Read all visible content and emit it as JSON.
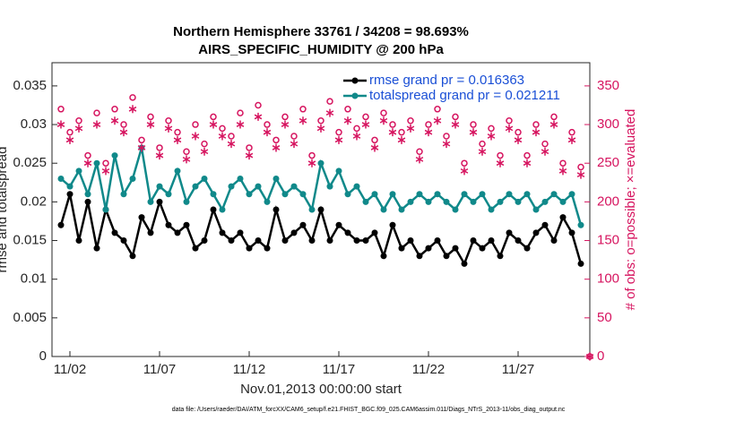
{
  "chart_data": {
    "type": "line",
    "title": "Northern Hemisphere 33761 / 34208 = 98.693%",
    "subtitle": "AIRS_SPECIFIC_HUMIDITY @ 200 hPa",
    "xlabel": "Nov.01,2013 00:00:00 start",
    "ylabel": "rmse and totalspread",
    "y2label": "# of obs: o=possible; ×=evaluated",
    "footnote": "data file: /Users/raeder/DAI/ATM_forcXX/CAM6_setup/f.e21.FHIST_BGC.f09_025.CAM6assim.011/Diags_NTrS_2013-11/obs_diag_output.nc",
    "grid": false,
    "legend": "upper right",
    "xlim": [
      1,
      31
    ],
    "xticks": [
      {
        "value": 2,
        "label": "11/02"
      },
      {
        "value": 7,
        "label": "11/07"
      },
      {
        "value": 12,
        "label": "11/12"
      },
      {
        "value": 17,
        "label": "11/17"
      },
      {
        "value": 22,
        "label": "11/22"
      },
      {
        "value": 27,
        "label": "11/27"
      }
    ],
    "ylim": [
      0,
      0.038
    ],
    "yticks": [
      0,
      0.005,
      0.01,
      0.015,
      0.02,
      0.025,
      0.03,
      0.035
    ],
    "y2lim": [
      0,
      380
    ],
    "y2ticks": [
      0,
      50,
      100,
      150,
      200,
      250,
      300,
      350
    ],
    "x": [
      1.5,
      2,
      2.5,
      3,
      3.5,
      4,
      4.5,
      5,
      5.5,
      6,
      6.5,
      7,
      7.5,
      8,
      8.5,
      9,
      9.5,
      10,
      10.5,
      11,
      11.5,
      12,
      12.5,
      13,
      13.5,
      14,
      14.5,
      15,
      15.5,
      16,
      16.5,
      17,
      17.5,
      18,
      18.5,
      19,
      19.5,
      20,
      20.5,
      21,
      21.5,
      22,
      22.5,
      23,
      23.5,
      24,
      24.5,
      25,
      25.5,
      26,
      26.5,
      27,
      27.5,
      28,
      28.5,
      29,
      29.5,
      30,
      30.5,
      31
    ],
    "series": [
      {
        "name": "rmse grand pr = 0.016363",
        "color": "#000000",
        "marker": "dot",
        "values": [
          0.017,
          0.021,
          0.015,
          0.02,
          0.014,
          0.019,
          0.016,
          0.015,
          0.013,
          0.018,
          0.016,
          0.02,
          0.017,
          0.016,
          0.017,
          0.014,
          0.015,
          0.019,
          0.016,
          0.015,
          0.016,
          0.014,
          0.015,
          0.014,
          0.019,
          0.015,
          0.016,
          0.017,
          0.015,
          0.019,
          0.015,
          0.017,
          0.016,
          0.015,
          0.015,
          0.016,
          0.013,
          0.017,
          0.014,
          0.015,
          0.013,
          0.014,
          0.015,
          0.013,
          0.014,
          0.012,
          0.015,
          0.014,
          0.015,
          0.013,
          0.016,
          0.015,
          0.014,
          0.016,
          0.017,
          0.015,
          0.018,
          0.016,
          0.012,
          null
        ]
      },
      {
        "name": "totalspread grand pr = 0.021211",
        "color": "#10898a",
        "marker": "dot",
        "values": [
          0.023,
          0.022,
          0.024,
          0.021,
          0.025,
          0.019,
          0.026,
          0.021,
          0.023,
          0.027,
          0.02,
          0.022,
          0.021,
          0.024,
          0.02,
          0.022,
          0.023,
          0.021,
          0.019,
          0.022,
          0.023,
          0.021,
          0.022,
          0.02,
          0.023,
          0.021,
          0.022,
          0.021,
          0.019,
          0.025,
          0.022,
          0.024,
          0.021,
          0.022,
          0.02,
          0.021,
          0.019,
          0.021,
          0.019,
          0.02,
          0.021,
          0.02,
          0.021,
          0.02,
          0.019,
          0.021,
          0.02,
          0.021,
          0.019,
          0.02,
          0.021,
          0.02,
          0.021,
          0.019,
          0.02,
          0.021,
          0.02,
          0.021,
          0.017,
          null
        ]
      },
      {
        "color": "#d6145f",
        "marker": "circle",
        "axis": "y2",
        "values": [
          320,
          290,
          305,
          260,
          315,
          250,
          320,
          300,
          335,
          280,
          310,
          270,
          305,
          290,
          265,
          300,
          275,
          310,
          295,
          285,
          315,
          270,
          325,
          300,
          280,
          310,
          285,
          320,
          260,
          305,
          330,
          290,
          320,
          295,
          310,
          280,
          315,
          300,
          290,
          305,
          265,
          300,
          320,
          285,
          310,
          250,
          300,
          275,
          295,
          260,
          305,
          290,
          260,
          300,
          275,
          310,
          250,
          290,
          245,
          0
        ]
      },
      {
        "color": "#d6145f",
        "marker": "star",
        "axis": "y2",
        "values": [
          300,
          280,
          295,
          250,
          300,
          240,
          305,
          290,
          320,
          270,
          300,
          260,
          295,
          280,
          255,
          285,
          265,
          300,
          285,
          275,
          300,
          260,
          310,
          290,
          270,
          300,
          275,
          305,
          250,
          295,
          315,
          280,
          305,
          285,
          300,
          270,
          305,
          290,
          280,
          295,
          255,
          290,
          305,
          275,
          300,
          240,
          290,
          265,
          285,
          250,
          295,
          280,
          250,
          290,
          265,
          300,
          240,
          280,
          235,
          0
        ]
      }
    ]
  }
}
